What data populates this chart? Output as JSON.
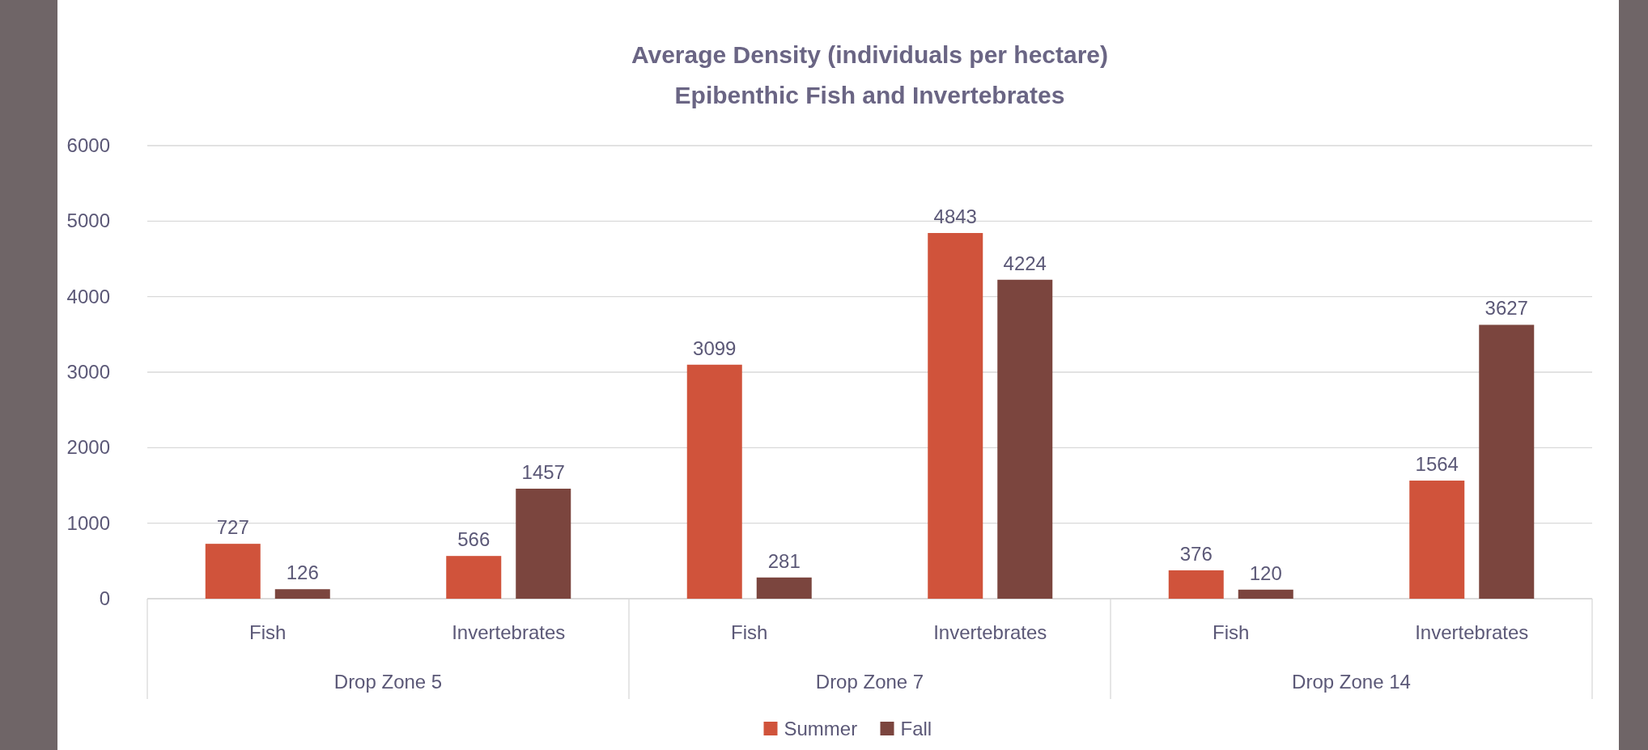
{
  "chart_data": {
    "type": "bar",
    "title": "Average Density (individuals per hectare)",
    "subtitle": "Epibenthic Fish and Invertebrates",
    "categories": [
      "Fish",
      "Invertebrates",
      "Fish",
      "Invertebrates",
      "Fish",
      "Invertebrates"
    ],
    "annotations": [
      "Drop Zone 5",
      "Drop Zone 7",
      "Drop Zone 14"
    ],
    "series": [
      {
        "name": "Summer",
        "color": "#d0533b",
        "values": [
          727,
          566,
          3099,
          4843,
          376,
          1564
        ]
      },
      {
        "name": "Fall",
        "color": "#7b453e",
        "values": [
          126,
          1457,
          281,
          4224,
          120,
          3627
        ]
      }
    ],
    "ylim": [
      0,
      6000
    ],
    "yticks": [
      0,
      1000,
      2000,
      3000,
      4000,
      5000,
      6000
    ],
    "grid": "y",
    "legend": "bottom",
    "data_labels": true
  }
}
